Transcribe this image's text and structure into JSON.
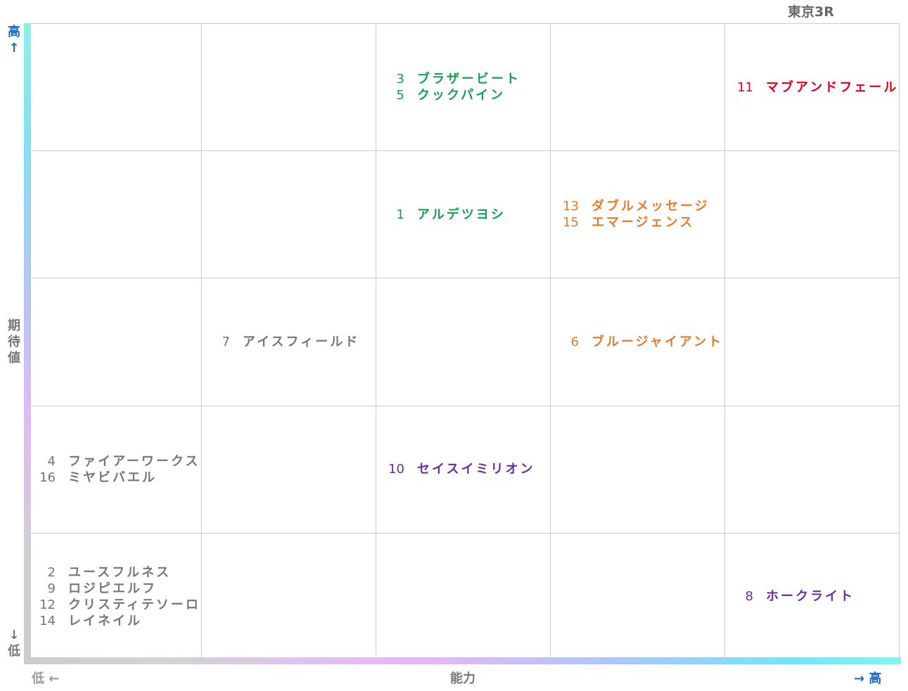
{
  "header": {
    "title": "東京3R"
  },
  "y_axis": {
    "high": "高↑",
    "label": "期待値",
    "low": "↓低"
  },
  "x_axis": {
    "low": "低 ←",
    "label": "能力",
    "high": "→ 高"
  },
  "grid": {
    "rows": [
      [
        {
          "entries": []
        },
        {
          "entries": []
        },
        {
          "color": "#17a050",
          "entries": [
            {
              "num": "3",
              "name": "ブラザービート"
            },
            {
              "num": "5",
              "name": "クックパイン"
            }
          ]
        },
        {
          "entries": []
        },
        {
          "color": "#e0001b",
          "entries": [
            {
              "num": "11",
              "name": "マブアンドフェール"
            }
          ]
        }
      ],
      [
        {
          "entries": []
        },
        {
          "entries": []
        },
        {
          "color": "#17a050",
          "entries": [
            {
              "num": "1",
              "name": "アルデツヨシ"
            }
          ]
        },
        {
          "color": "#e87b2a",
          "entries": [
            {
              "num": "13",
              "name": "ダブルメッセージ"
            },
            {
              "num": "15",
              "name": "エマージェンス"
            }
          ]
        },
        {
          "entries": []
        }
      ],
      [
        {
          "entries": []
        },
        {
          "color": "#777777",
          "entries": [
            {
              "num": "7",
              "name": "アイスフィールド"
            }
          ]
        },
        {
          "entries": []
        },
        {
          "color": "#e87b2a",
          "entries": [
            {
              "num": "6",
              "name": "ブルージャイアント"
            }
          ]
        },
        {
          "entries": []
        }
      ],
      [
        {
          "color": "#777777",
          "entries": [
            {
              "num": "4",
              "name": "ファイアーワークス"
            },
            {
              "num": "16",
              "name": "ミヤビバエル"
            }
          ]
        },
        {
          "entries": []
        },
        {
          "color": "#6a2ea0",
          "entries": [
            {
              "num": "10",
              "name": "セイスイミリオン"
            }
          ]
        },
        {
          "entries": []
        },
        {
          "entries": []
        }
      ],
      [
        {
          "color": "#777777",
          "entries": [
            {
              "num": "2",
              "name": "ユースフルネス"
            },
            {
              "num": "9",
              "name": "ロジピエルフ"
            },
            {
              "num": "12",
              "name": "クリスティテソーロ"
            },
            {
              "num": "14",
              "name": "レイネイル"
            }
          ]
        },
        {
          "entries": []
        },
        {
          "entries": []
        },
        {
          "entries": []
        },
        {
          "color": "#6a2ea0",
          "entries": [
            {
              "num": "8",
              "name": "ホークライト"
            }
          ]
        }
      ]
    ]
  }
}
